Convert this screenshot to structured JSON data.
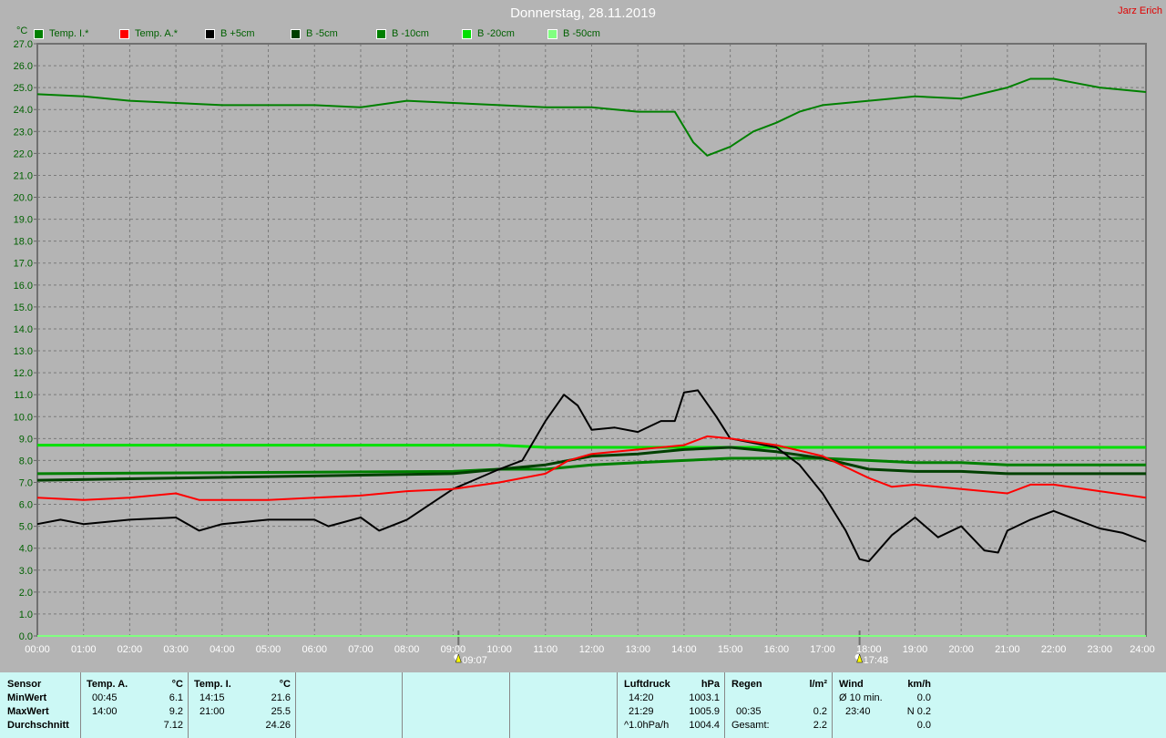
{
  "title": "Donnerstag, 28.11.2019",
  "author": "Jarz Erich",
  "chart_data": {
    "type": "line",
    "ylabel": "°C",
    "ylim": [
      0,
      27
    ],
    "xlim": [
      0,
      24
    ],
    "grid": true,
    "legend_placement": "top",
    "y_ticks": [
      "0.0",
      "1.0",
      "2.0",
      "3.0",
      "4.0",
      "5.0",
      "6.0",
      "7.0",
      "8.0",
      "9.0",
      "10.0",
      "11.0",
      "12.0",
      "13.0",
      "14.0",
      "15.0",
      "16.0",
      "17.0",
      "18.0",
      "19.0",
      "20.0",
      "21.0",
      "22.0",
      "23.0",
      "24.0",
      "25.0",
      "26.0",
      "27.0"
    ],
    "x_ticks": [
      "00:00",
      "01:00",
      "02:00",
      "03:00",
      "04:00",
      "05:00",
      "06:00",
      "07:00",
      "08:00",
      "09:00",
      "10:00",
      "11:00",
      "12:00",
      "13:00",
      "14:00",
      "15:00",
      "16:00",
      "17:00",
      "18:00",
      "19:00",
      "20:00",
      "21:00",
      "22:00",
      "23:00",
      "24:00"
    ],
    "annotations": {
      "sunrise": "09:07",
      "sunset": "17:48"
    },
    "series": [
      {
        "name": "Temp. I.*",
        "color": "#008000",
        "points": [
          [
            0,
            24.7
          ],
          [
            1,
            24.6
          ],
          [
            2,
            24.4
          ],
          [
            3,
            24.3
          ],
          [
            4,
            24.2
          ],
          [
            5,
            24.2
          ],
          [
            6,
            24.2
          ],
          [
            7,
            24.1
          ],
          [
            8,
            24.4
          ],
          [
            9,
            24.3
          ],
          [
            10,
            24.2
          ],
          [
            11,
            24.1
          ],
          [
            12,
            24.1
          ],
          [
            13,
            23.9
          ],
          [
            13.8,
            23.9
          ],
          [
            14.2,
            22.5
          ],
          [
            14.5,
            21.9
          ],
          [
            15,
            22.3
          ],
          [
            15.5,
            23.0
          ],
          [
            16,
            23.4
          ],
          [
            16.5,
            23.9
          ],
          [
            17,
            24.2
          ],
          [
            18,
            24.4
          ],
          [
            18.5,
            24.5
          ],
          [
            19,
            24.6
          ],
          [
            20,
            24.5
          ],
          [
            21,
            25.0
          ],
          [
            21.5,
            25.4
          ],
          [
            22,
            25.4
          ],
          [
            22.5,
            25.2
          ],
          [
            23,
            25.0
          ],
          [
            24,
            24.8
          ]
        ]
      },
      {
        "name": "Temp. A.*",
        "color": "#ff0000",
        "points": [
          [
            0,
            6.3
          ],
          [
            1,
            6.2
          ],
          [
            2,
            6.3
          ],
          [
            3,
            6.5
          ],
          [
            3.5,
            6.2
          ],
          [
            4,
            6.2
          ],
          [
            5,
            6.2
          ],
          [
            6,
            6.3
          ],
          [
            7,
            6.4
          ],
          [
            8,
            6.6
          ],
          [
            9,
            6.7
          ],
          [
            10,
            7.0
          ],
          [
            11,
            7.4
          ],
          [
            11.5,
            8.0
          ],
          [
            12,
            8.3
          ],
          [
            13,
            8.5
          ],
          [
            14,
            8.7
          ],
          [
            14.5,
            9.1
          ],
          [
            15,
            9.0
          ],
          [
            16,
            8.7
          ],
          [
            17,
            8.2
          ],
          [
            17.5,
            7.7
          ],
          [
            18,
            7.2
          ],
          [
            18.5,
            6.8
          ],
          [
            19,
            6.9
          ],
          [
            20,
            6.7
          ],
          [
            21,
            6.5
          ],
          [
            21.5,
            6.9
          ],
          [
            22,
            6.9
          ],
          [
            23,
            6.6
          ],
          [
            24,
            6.3
          ]
        ]
      },
      {
        "name": "B +5cm",
        "color": "#000000",
        "points": [
          [
            0,
            5.1
          ],
          [
            0.5,
            5.3
          ],
          [
            1,
            5.1
          ],
          [
            2,
            5.3
          ],
          [
            3,
            5.4
          ],
          [
            3.5,
            4.8
          ],
          [
            4,
            5.1
          ],
          [
            5,
            5.3
          ],
          [
            6,
            5.3
          ],
          [
            6.3,
            5.0
          ],
          [
            7,
            5.4
          ],
          [
            7.4,
            4.8
          ],
          [
            8,
            5.3
          ],
          [
            8.5,
            6.0
          ],
          [
            9,
            6.7
          ],
          [
            10,
            7.6
          ],
          [
            10.5,
            8.0
          ],
          [
            11,
            9.8
          ],
          [
            11.4,
            11.0
          ],
          [
            11.7,
            10.5
          ],
          [
            12,
            9.4
          ],
          [
            12.5,
            9.5
          ],
          [
            13,
            9.3
          ],
          [
            13.5,
            9.8
          ],
          [
            13.8,
            9.8
          ],
          [
            14,
            11.1
          ],
          [
            14.3,
            11.2
          ],
          [
            14.7,
            10.0
          ],
          [
            15,
            9.0
          ],
          [
            16,
            8.6
          ],
          [
            16.5,
            7.8
          ],
          [
            17,
            6.5
          ],
          [
            17.5,
            4.8
          ],
          [
            17.8,
            3.5
          ],
          [
            18,
            3.4
          ],
          [
            18.5,
            4.6
          ],
          [
            19,
            5.4
          ],
          [
            19.5,
            4.5
          ],
          [
            20,
            5.0
          ],
          [
            20.5,
            3.9
          ],
          [
            20.8,
            3.8
          ],
          [
            21,
            4.8
          ],
          [
            21.5,
            5.3
          ],
          [
            22,
            5.7
          ],
          [
            22.5,
            5.3
          ],
          [
            23,
            4.9
          ],
          [
            23.5,
            4.7
          ],
          [
            24,
            4.3
          ]
        ]
      },
      {
        "name": "B -5cm",
        "color": "#004000",
        "points": [
          [
            0,
            7.1
          ],
          [
            9,
            7.4
          ],
          [
            10,
            7.6
          ],
          [
            11,
            7.8
          ],
          [
            12,
            8.2
          ],
          [
            13,
            8.3
          ],
          [
            14,
            8.5
          ],
          [
            15,
            8.6
          ],
          [
            16,
            8.4
          ],
          [
            17,
            8.1
          ],
          [
            18,
            7.6
          ],
          [
            19,
            7.5
          ],
          [
            20,
            7.5
          ],
          [
            21,
            7.4
          ],
          [
            24,
            7.4
          ]
        ]
      },
      {
        "name": "B -10cm",
        "color": "#008000",
        "points": [
          [
            0,
            7.4
          ],
          [
            9,
            7.5
          ],
          [
            10,
            7.6
          ],
          [
            11,
            7.6
          ],
          [
            12,
            7.8
          ],
          [
            13,
            7.9
          ],
          [
            14,
            8.0
          ],
          [
            15,
            8.1
          ],
          [
            17,
            8.1
          ],
          [
            18,
            8.0
          ],
          [
            19,
            7.9
          ],
          [
            20,
            7.9
          ],
          [
            21,
            7.8
          ],
          [
            24,
            7.8
          ]
        ]
      },
      {
        "name": "B -20cm",
        "color": "#00e000",
        "points": [
          [
            0,
            8.7
          ],
          [
            10,
            8.7
          ],
          [
            11,
            8.6
          ],
          [
            24,
            8.6
          ]
        ]
      },
      {
        "name": "B -50cm",
        "color": "#80ff80",
        "points": [
          [
            0,
            0.0
          ],
          [
            24,
            0.0
          ]
        ]
      }
    ]
  },
  "table": {
    "sensor": {
      "h": "Sensor",
      "r1": "MinWert",
      "r2": "MaxWert",
      "r3": "Durchschnitt"
    },
    "tempA": {
      "h": "Temp. A.",
      "u": "°C",
      "min_t": "00:45",
      "min": "6.1",
      "max_t": "14:00",
      "max": "9.2",
      "avg": "7.12"
    },
    "tempI": {
      "h": "Temp. I.",
      "u": "°C",
      "min_t": "14:15",
      "min": "21.6",
      "max_t": "21:00",
      "max": "25.5",
      "avg": "24.26"
    },
    "luft": {
      "h": "Luftdruck",
      "u": "hPa",
      "t1": "14:20",
      "v1": "1003.1",
      "t2": "21:29",
      "v2": "1005.9",
      "t3": "^1.0hPa/h",
      "v3": "1004.4"
    },
    "regen": {
      "h": "Regen",
      "u": "l/m²",
      "t2": "00:35",
      "v2": "0.2",
      "t3": "Gesamt:",
      "v3": "2.2"
    },
    "wind": {
      "h": "Wind",
      "u": "km/h",
      "t1": "Ø 10 min.",
      "v1": "0.0",
      "t2": "23:40",
      "v2": "N 0.2",
      "v3": "0.0"
    }
  }
}
